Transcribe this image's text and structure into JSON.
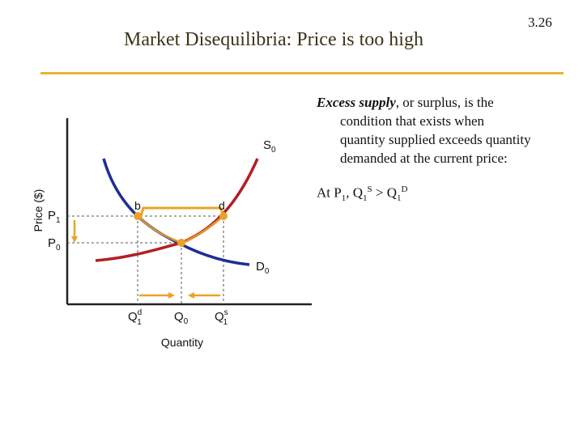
{
  "slide": {
    "title": "Market Disequilibria: Price is too high",
    "number": "3.26"
  },
  "bullet": {
    "term": "Excess supply",
    "line1_rest": ", or surplus, is the",
    "line2": "condition that exists when",
    "line3": "quantity supplied exceeds quantity",
    "line4": "demanded at the current price:"
  },
  "formula": {
    "prefix": "At P",
    "p_sub": "1",
    "comma": ", Q",
    "qs_sub": "1",
    "qs_sup": "S",
    "gt": " > Q",
    "qd_sub": "1",
    "qd_sup": "D"
  },
  "diagram": {
    "y_axis_label": "Price ($)",
    "x_axis_label": "Quantity",
    "supply_label": "S",
    "supply_sub": "0",
    "demand_label": "D",
    "demand_sub": "0",
    "p1_label": "P",
    "p1_sub": "1",
    "p0_label": "P",
    "p0_sub": "0",
    "point_b_label": "b",
    "point_d_label": "d",
    "q1d_label": "Q",
    "q1d_sup": "d",
    "q1d_sub": "1",
    "q0_label": "Q",
    "q0_sub": "0",
    "q1s_label": "Q",
    "q1s_sup": "s",
    "q1s_sub": "1"
  },
  "colors": {
    "supply": "#b22024",
    "demand": "#1e2d96",
    "highlight": "#e9a228",
    "rule": "#e9b631",
    "title": "#3b3418"
  }
}
